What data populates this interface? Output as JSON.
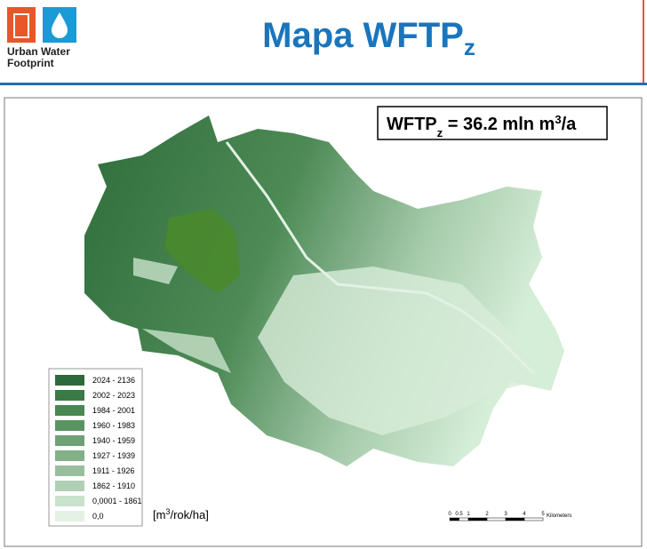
{
  "logo": {
    "lines": [
      "Urban Water",
      "Footprint"
    ]
  },
  "title": {
    "main": "Mapa WFTP",
    "sub": "z"
  },
  "summary": {
    "parts": [
      "WFTP",
      "z",
      " = 36.2 mln m",
      "3",
      "/a"
    ]
  },
  "legend": {
    "items": [
      {
        "label": "2024 - 2136",
        "color": "#2d6a3a"
      },
      {
        "label": "2002 - 2023",
        "color": "#3a7a45"
      },
      {
        "label": "1984 - 2001",
        "color": "#4a8752"
      },
      {
        "label": "1960 - 1983",
        "color": "#5a9462"
      },
      {
        "label": "1940 - 1959",
        "color": "#6ea274"
      },
      {
        "label": "1927 - 1939",
        "color": "#82b088"
      },
      {
        "label": "1911 - 1926",
        "color": "#98bf9c"
      },
      {
        "label": "1862 - 1910",
        "color": "#b0d0b3"
      },
      {
        "label": "0,0001 - 1861",
        "color": "#c9e2cb"
      },
      {
        "label": "0,0",
        "color": "#e3f2e5"
      }
    ]
  },
  "unit": {
    "parts": [
      "[m",
      "3",
      "/rok/ha]"
    ]
  },
  "scale_bar": {
    "ticks": [
      0,
      0.5,
      1,
      2,
      3,
      4,
      5
    ],
    "unit": "Kilometers"
  }
}
